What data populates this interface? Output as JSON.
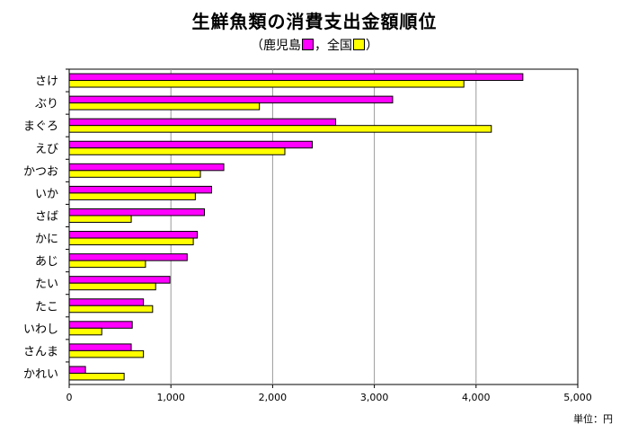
{
  "chart_data": {
    "type": "bar",
    "orientation": "horizontal",
    "title": "生鮮魚類の消費支出金額順位",
    "subtitle_open": "（",
    "subtitle_close": "）",
    "unit_label": "単位：円",
    "xlim": [
      0,
      5000
    ],
    "xticks": [
      0,
      1000,
      2000,
      3000,
      4000,
      5000
    ],
    "xtick_labels": [
      "0",
      "1,000",
      "2,000",
      "3,000",
      "4,000",
      "5,000"
    ],
    "grid": true,
    "categories": [
      "さけ",
      "ぶり",
      "まぐろ",
      "えび",
      "かつお",
      "いか",
      "さば",
      "かに",
      "あじ",
      "たい",
      "たこ",
      "いわし",
      "さんま",
      "かれい"
    ],
    "series": [
      {
        "name": "鹿児島",
        "legend_suffix": "",
        "color": "#ff00ff",
        "values": [
          4460,
          3180,
          2620,
          2390,
          1520,
          1400,
          1330,
          1260,
          1160,
          990,
          730,
          620,
          610,
          160
        ]
      },
      {
        "name": "，全国",
        "legend_suffix": "",
        "color": "#ffff00",
        "values": [
          3880,
          1870,
          4150,
          2120,
          1290,
          1240,
          610,
          1220,
          750,
          850,
          820,
          320,
          730,
          540
        ]
      }
    ]
  }
}
